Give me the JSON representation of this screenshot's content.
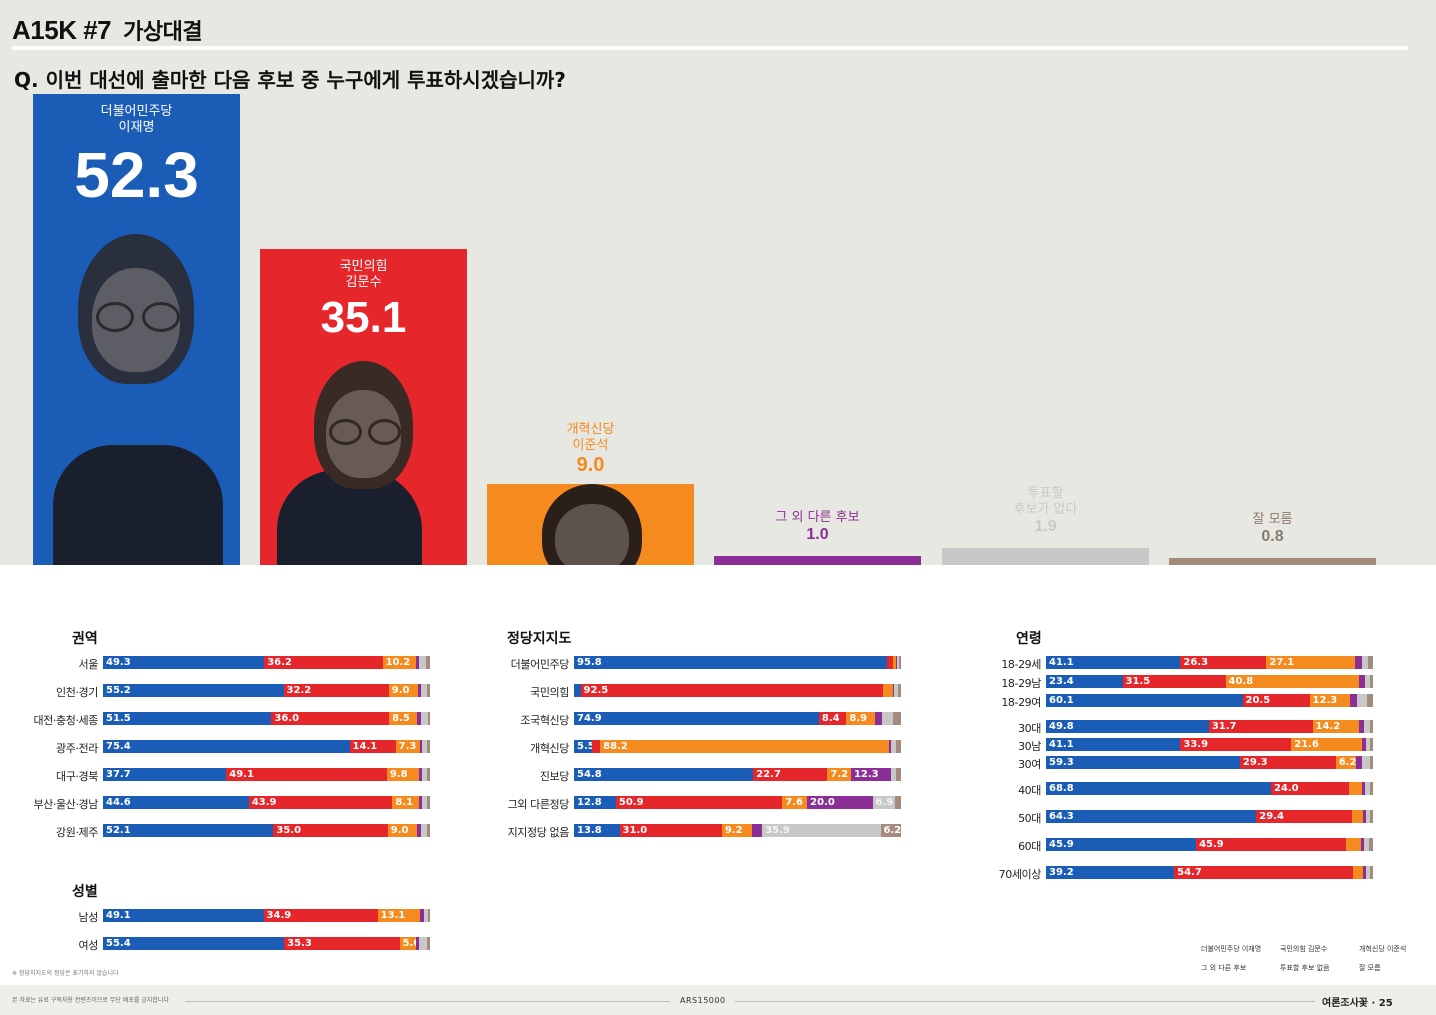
{
  "header": {
    "code": "A15K #7",
    "section": "가상대결"
  },
  "question": "Q. 이번 대선에 출마한 다음 후보 중 누구에게 투표하시겠습니까?",
  "colors": {
    "lee": "#1b5db6",
    "kim": "#e5262b",
    "lji": "#f58a1f",
    "other": "#8b2f97",
    "none": "#c8c8c8",
    "dk": "#a38c7d",
    "topbg": "#e8e8e2"
  },
  "chart_data": [
    {
      "type": "bar",
      "categories": [
        "더불어민주당 이재명",
        "국민의힘 김문수",
        "개혁신당 이준석",
        "그 외 다른 후보",
        "투표할 후보가 없다",
        "잘 모름"
      ],
      "values": [
        52.3,
        35.1,
        9.0,
        1.0,
        1.9,
        0.8
      ],
      "items": [
        {
          "party": "더불어민주당",
          "name": "이재명",
          "value_label": "52.3",
          "color": "#1b5db6",
          "portrait": "person-portrait-lee"
        },
        {
          "party": "국민의힘",
          "name": "김문수",
          "value_label": "35.1",
          "color": "#e5262b",
          "portrait": "person-portrait-kim"
        },
        {
          "party": "개혁신당",
          "name": "이준석",
          "value_label": "9.0",
          "color": "#f58a1f",
          "portrait": "person-portrait-lji"
        },
        {
          "party": "그 외 다른 후보",
          "name": "",
          "value_label": "1.0",
          "color": "#8b2f97"
        },
        {
          "party": "투표할",
          "name": "후보가 없다",
          "value_label": "1.9",
          "color": "#c8c8c8"
        },
        {
          "party": "잘 모름",
          "name": "",
          "value_label": "0.8",
          "color": "#a38c7d"
        }
      ]
    },
    {
      "type": "bar",
      "stacked": true,
      "orientation": "horizontal",
      "title": "권역",
      "categories": [
        "서울",
        "인천·경기",
        "대전·충청·세종",
        "광주·전라",
        "대구·경북",
        "부산·울산·경남",
        "강원·제주"
      ],
      "series": [
        {
          "name": "더불어민주당 이재명",
          "values": [
            49.3,
            55.2,
            51.5,
            75.4,
            37.7,
            44.6,
            52.1
          ]
        },
        {
          "name": "국민의힘 김문수",
          "values": [
            36.2,
            32.2,
            36.0,
            14.1,
            49.1,
            43.9,
            35.0
          ]
        },
        {
          "name": "개혁신당 이준석",
          "values": [
            10.2,
            9.0,
            8.5,
            7.3,
            9.8,
            8.1,
            9.0
          ]
        },
        {
          "name": "그 외 다른 후보",
          "values": [
            1.0,
            1.0,
            1.2,
            0.8,
            0.9,
            1.0,
            1.1
          ]
        },
        {
          "name": "투표할 후보 없음",
          "values": [
            2.0,
            1.6,
            2.1,
            1.6,
            1.6,
            1.4,
            1.9
          ]
        },
        {
          "name": "잘 모름",
          "values": [
            1.3,
            1.0,
            0.7,
            0.8,
            0.9,
            1.0,
            0.9
          ]
        }
      ]
    },
    {
      "type": "bar",
      "stacked": true,
      "orientation": "horizontal",
      "title": "성별",
      "categories": [
        "남성",
        "여성"
      ],
      "series": [
        {
          "name": "더불어민주당 이재명",
          "values": [
            49.1,
            55.4
          ]
        },
        {
          "name": "국민의힘 김문수",
          "values": [
            34.9,
            35.3
          ]
        },
        {
          "name": "개혁신당 이준석",
          "values": [
            13.1,
            5.0
          ]
        },
        {
          "name": "그 외 다른 후보",
          "values": [
            1.0,
            1.0
          ]
        },
        {
          "name": "투표할 후보 없음",
          "values": [
            1.2,
            2.3
          ]
        },
        {
          "name": "잘 모름",
          "values": [
            0.7,
            1.0
          ]
        }
      ]
    },
    {
      "type": "bar",
      "stacked": true,
      "orientation": "horizontal",
      "title": "정당지지도",
      "categories": [
        "더불어민주당",
        "국민의힘",
        "조국혁신당",
        "개혁신당",
        "진보당",
        "그외 다른정당",
        "지지정당 없음"
      ],
      "series": [
        {
          "name": "더불어민주당 이재명",
          "values": [
            95.8,
            2.0,
            74.9,
            5.5,
            54.8,
            12.8,
            13.8
          ]
        },
        {
          "name": "국민의힘 김문수",
          "values": [
            1.8,
            92.5,
            8.4,
            2.5,
            22.7,
            50.9,
            31.0
          ]
        },
        {
          "name": "개혁신당 이준석",
          "values": [
            1.0,
            3.0,
            8.9,
            88.2,
            7.2,
            7.6,
            9.2
          ]
        },
        {
          "name": "그 외 다른 후보",
          "values": [
            0.3,
            0.5,
            2.0,
            0.8,
            12.3,
            20.0,
            3.0
          ]
        },
        {
          "name": "투표할 후보 없음",
          "values": [
            0.6,
            1.2,
            3.5,
            1.5,
            1.5,
            6.9,
            35.9
          ]
        },
        {
          "name": "잘 모름",
          "values": [
            0.5,
            0.8,
            2.3,
            1.5,
            1.5,
            1.8,
            6.2
          ]
        }
      ]
    },
    {
      "type": "bar",
      "stacked": true,
      "orientation": "horizontal",
      "title": "연령",
      "categories": [
        "18-29세",
        "18-29남",
        "18-29여",
        "30대",
        "30남",
        "30여",
        "40대",
        "50대",
        "60대",
        "70세이상"
      ],
      "series": [
        {
          "name": "더불어민주당 이재명",
          "values": [
            41.1,
            23.4,
            60.1,
            49.8,
            41.1,
            59.3,
            68.8,
            64.3,
            45.9,
            39.2
          ]
        },
        {
          "name": "국민의힘 김문수",
          "values": [
            26.3,
            31.5,
            20.5,
            31.7,
            33.9,
            29.3,
            24.0,
            29.4,
            45.9,
            54.7
          ]
        },
        {
          "name": "개혁신당 이준석",
          "values": [
            27.1,
            40.8,
            12.3,
            14.2,
            21.6,
            6.2,
            3.8,
            3.2,
            4.5,
            3.2
          ]
        },
        {
          "name": "그 외 다른 후보",
          "values": [
            2.0,
            1.8,
            2.2,
            1.5,
            1.2,
            1.8,
            1.0,
            1.0,
            1.0,
            0.8
          ]
        },
        {
          "name": "투표할 후보 없음",
          "values": [
            2.0,
            1.5,
            3.0,
            1.8,
            1.2,
            2.4,
            1.5,
            1.2,
            1.4,
            1.2
          ]
        },
        {
          "name": "잘 모름",
          "values": [
            1.5,
            1.0,
            1.9,
            1.0,
            1.0,
            1.0,
            0.9,
            0.9,
            1.3,
            0.9
          ]
        }
      ]
    }
  ],
  "label_rules": {
    "min_label": 5
  },
  "legend": [
    {
      "label": "더불어민주당 이재명",
      "color": "#1b5db6"
    },
    {
      "label": "국민의힘 김문수",
      "color": "#e5262b"
    },
    {
      "label": "개혁신당 이준석",
      "color": "#f58a1f"
    },
    {
      "label": "그 외 다른 후보",
      "color": "#8b2f97"
    },
    {
      "label": "투표할 후보 없음",
      "color": "#c8c8c8"
    },
    {
      "label": "잘 모름",
      "color": "#a38c7d"
    }
  ],
  "note": "※ 정당지지도의 정당은 표기하지 않습니다",
  "footer": {
    "left": "본 자료는 유료 구독자용 컨텐츠이므로 무단 배포를 금지합니다",
    "center": "ARS15000",
    "right": "여론조사꽃 · 25"
  }
}
